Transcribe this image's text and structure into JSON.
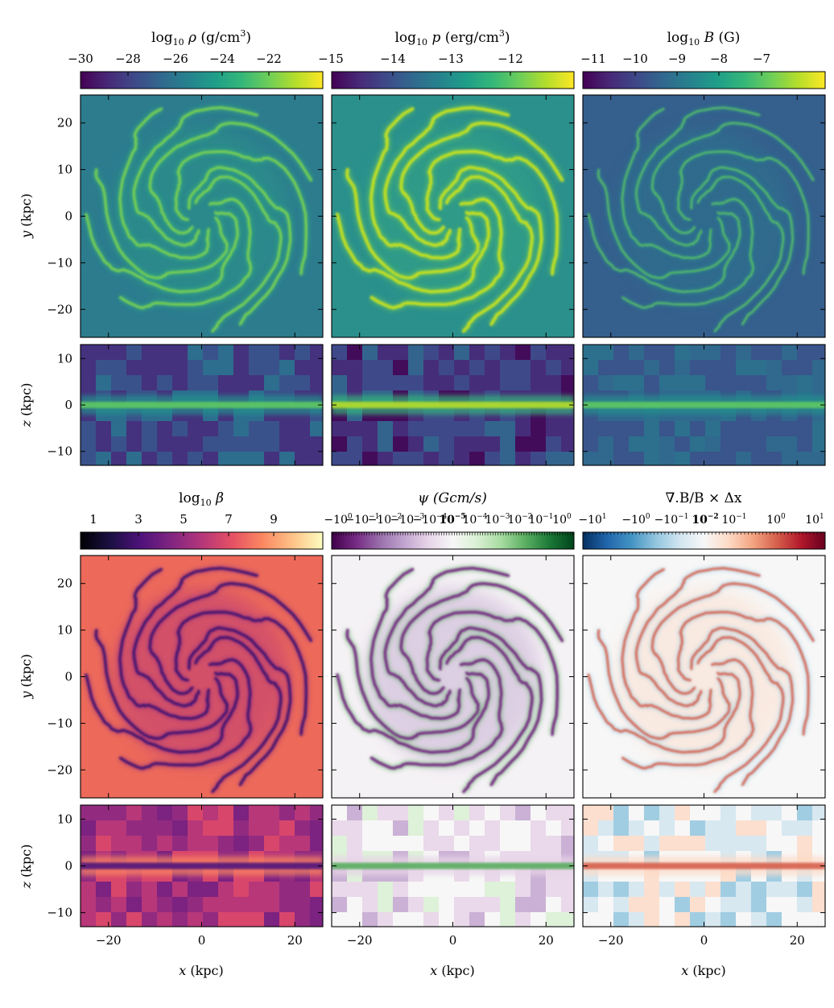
{
  "chart_data": [
    {
      "type": "heatmap",
      "quantity": "density",
      "colorbar": {
        "label": "log10 ρ (g/cm³)",
        "ticks": [
          "−30",
          "−28",
          "−26",
          "−24",
          "−22",
          "−15"
        ],
        "range": [
          -30,
          -15
        ],
        "colormap": "viridis"
      },
      "panels": [
        {
          "view": "face-on",
          "x_range": [
            -26,
            26
          ],
          "y_range": [
            -26,
            26
          ],
          "ylabel": "y (kpc)",
          "yticks": [
            "20",
            "10",
            "0",
            "−10",
            "−20"
          ]
        },
        {
          "view": "edge-on",
          "x_range": [
            -26,
            26
          ],
          "z_range": [
            -13,
            13
          ],
          "ylabel": "z (kpc)",
          "yticks": [
            "10",
            "0",
            "−10"
          ]
        }
      ]
    },
    {
      "type": "heatmap",
      "quantity": "pressure",
      "colorbar": {
        "label": "log10 p (erg/cm³)",
        "ticks": [
          "−15",
          "−14",
          "−13",
          "−12"
        ],
        "range": [
          -15,
          -11.3
        ],
        "colormap": "viridis"
      },
      "panels": [
        {
          "view": "face-on"
        },
        {
          "view": "edge-on"
        }
      ]
    },
    {
      "type": "heatmap",
      "quantity": "magnetic field",
      "colorbar": {
        "label": "log10 B (G)",
        "ticks": [
          "−11",
          "−10",
          "−9",
          "−8",
          "−7"
        ],
        "range": [
          -11,
          -6.2
        ],
        "colormap": "viridis"
      },
      "panels": [
        {
          "view": "face-on"
        },
        {
          "view": "edge-on"
        }
      ]
    },
    {
      "type": "heatmap",
      "quantity": "plasma beta",
      "colorbar": {
        "label": "log10 β",
        "ticks": [
          "1",
          "3",
          "5",
          "7",
          "9"
        ],
        "range": [
          0,
          10.6
        ],
        "colormap": "magma"
      },
      "panels": [
        {
          "view": "face-on",
          "ylabel": "y (kpc)",
          "yticks": [
            "20",
            "10",
            "0",
            "−10",
            "−20"
          ]
        },
        {
          "view": "edge-on",
          "ylabel": "z (kpc)",
          "yticks": [
            "10",
            "0",
            "−10"
          ],
          "xlabel": "x (kpc)",
          "xticks": [
            "−20",
            "0",
            "20"
          ]
        }
      ]
    },
    {
      "type": "heatmap",
      "quantity": "divergence cleaning scalar",
      "colorbar": {
        "label": "ψ (Gcm/s)",
        "scale": "symlog",
        "ticks_text": "−10⁰ −10⁻¹ −10⁻² −10⁻³ −10⁻⁴ −10⁻⁵ 10⁻⁵ 10⁻⁴ 10⁻³ 10⁻² 10⁻¹ 10⁰",
        "colormap": "PRGn"
      },
      "panels": [
        {
          "view": "face-on"
        },
        {
          "view": "edge-on",
          "xlabel": "x (kpc)",
          "xticks": [
            "−20",
            "0",
            "20"
          ]
        }
      ]
    },
    {
      "type": "heatmap",
      "quantity": "relative divergence error",
      "colorbar": {
        "label": "∇.B/B × Δx",
        "scale": "symlog",
        "ticks": [
          "−10¹",
          "−10⁰",
          "−10⁻¹",
          "10⁻²",
          "10⁻¹",
          "10⁰",
          "10¹"
        ],
        "colormap": "RdBu_r"
      },
      "panels": [
        {
          "view": "face-on"
        },
        {
          "view": "edge-on",
          "xlabel": "x (kpc)",
          "xticks": [
            "−20",
            "0",
            "20"
          ]
        }
      ]
    }
  ],
  "labels": {
    "rho_name": "ρ",
    "rho_unit": "(g/cm",
    "p_name": "p",
    "p_unit": "(erg/cm",
    "b_name": "B",
    "b_unit": "(G)",
    "beta_name": "β",
    "psi_label": "ψ (Gcm/s)",
    "div_label": "∇.B/B × Δx",
    "ylabel_y": "y (kpc)",
    "ylabel_z": "z (kpc)",
    "xlabel": "x (kpc)",
    "yticks_face": [
      "20",
      "10",
      "0",
      "−10",
      "−20"
    ],
    "yticks_edge": [
      "10",
      "0",
      "−10"
    ],
    "xticks": [
      "−20",
      "0",
      "20"
    ],
    "rho_ticks": [
      "−30",
      "−28",
      "−26",
      "−24",
      "−22",
      "−15"
    ],
    "p_ticks": [
      "−14",
      "−13",
      "−12"
    ],
    "b_ticks": [
      "−11",
      "−10",
      "−9",
      "−8",
      "−7"
    ],
    "beta_ticks": [
      "1",
      "3",
      "5",
      "7",
      "9"
    ],
    "psi_ticks": [
      "−10",
      "0",
      "−1",
      "−2",
      "−3",
      "−4",
      "−5",
      "10",
      "−5",
      "10",
      "−4",
      "10",
      "−3",
      "10",
      "−2",
      "10",
      "−1",
      "10",
      "0"
    ],
    "div_ticks": [
      "−10",
      "1",
      "−10",
      "0",
      "−10",
      "−1",
      "10",
      "−2",
      "10",
      "−1",
      "10",
      "0",
      "10",
      "1"
    ]
  },
  "colors": {
    "viridis": [
      "#440154",
      "#482878",
      "#3e4989",
      "#31688e",
      "#26828e",
      "#1f9e89",
      "#35b779",
      "#6ece58",
      "#b5de2b",
      "#fde725"
    ],
    "magma": [
      "#000004",
      "#1c1044",
      "#4f127b",
      "#812581",
      "#b5367a",
      "#e55064",
      "#fb8761",
      "#fec287",
      "#fcfdbf"
    ],
    "prgn": [
      "#40004b",
      "#762a83",
      "#9970ab",
      "#c2a5cf",
      "#e7d4e8",
      "#f7f7f7",
      "#d9f0d3",
      "#a6dba0",
      "#5aae61",
      "#1b7837",
      "#00441b"
    ],
    "rdbu": [
      "#053061",
      "#2166ac",
      "#4393c3",
      "#92c5de",
      "#d1e5f0",
      "#f7f7f7",
      "#fddbc7",
      "#f4a582",
      "#d6604d",
      "#b2182b",
      "#67001f"
    ]
  }
}
